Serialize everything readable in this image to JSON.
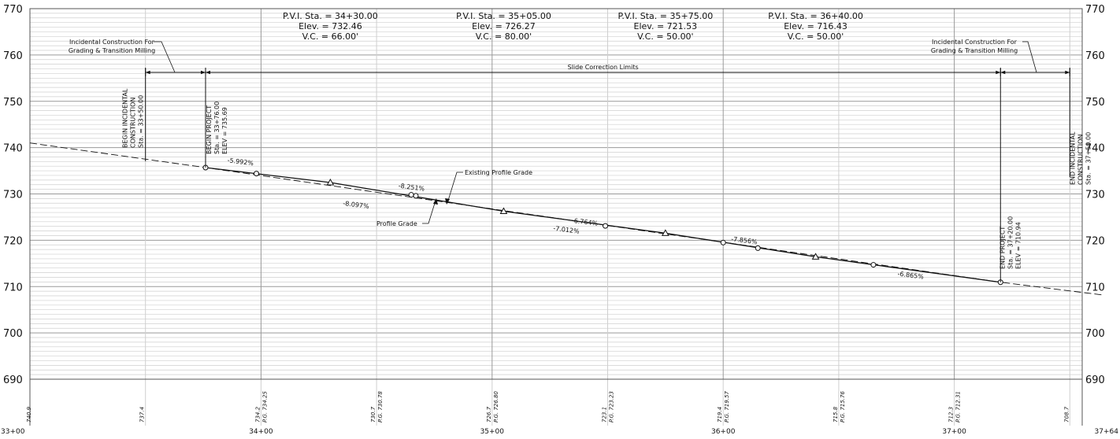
{
  "chart_data": {
    "type": "line",
    "title": "",
    "xlabel": "",
    "ylabel": "",
    "x_unit": "station (ft)",
    "xlim": [
      3300,
      3764
    ],
    "ylim": [
      690,
      770
    ],
    "y_ticks": [
      690,
      700,
      710,
      720,
      730,
      740,
      750,
      760,
      770
    ],
    "x_ticks": [
      {
        "sta": 3300,
        "label": "33+00"
      },
      {
        "sta": 3400,
        "label": "34+00"
      },
      {
        "sta": 3500,
        "label": "35+00"
      },
      {
        "sta": 3600,
        "label": "36+00"
      },
      {
        "sta": 3700,
        "label": "37+00"
      },
      {
        "sta": 3764,
        "label": "37+64"
      }
    ],
    "grid": true,
    "series": [
      {
        "name": "Existing Profile Grade",
        "style": "dashed",
        "x": [
          3300,
          3376,
          3720,
          3764
        ],
        "y": [
          741.0,
          735.69,
          710.94,
          708.2
        ]
      },
      {
        "name": "Profile Grade",
        "style": "solid",
        "x": [
          3376,
          3430,
          3505,
          3575,
          3640,
          3720
        ],
        "y": [
          735.69,
          732.46,
          726.27,
          721.53,
          716.43,
          710.94
        ]
      }
    ],
    "circle_markers": [
      {
        "x": 3376,
        "y": 735.69
      },
      {
        "x": 3398,
        "y": 734.4
      },
      {
        "x": 3465,
        "y": 729.8
      },
      {
        "x": 3467,
        "y": 729.6
      },
      {
        "x": 3549,
        "y": 723.1
      },
      {
        "x": 3600,
        "y": 719.5
      },
      {
        "x": 3615,
        "y": 718.3
      },
      {
        "x": 3665,
        "y": 714.7
      },
      {
        "x": 3720,
        "y": 710.94
      }
    ],
    "triangle_markers": [
      {
        "x": 3430,
        "y": 732.46
      },
      {
        "x": 3505,
        "y": 726.27
      },
      {
        "x": 3575,
        "y": 721.53
      },
      {
        "x": 3640,
        "y": 716.43
      }
    ],
    "pvi_labels": [
      {
        "x": 3430,
        "lines": [
          "P.V.I. Sta. = 34+30.00",
          "Elev. = 732.46",
          "V.C. = 66.00'"
        ]
      },
      {
        "x": 3505,
        "lines": [
          "P.V.I. Sta. = 35+05.00",
          "Elev. = 726.27",
          "V.C. = 80.00'"
        ]
      },
      {
        "x": 3575,
        "lines": [
          "P.V.I. Sta. = 35+75.00",
          "Elev. = 721.53",
          "V.C. = 50.00'"
        ]
      },
      {
        "x": 3640,
        "lines": [
          "P.V.I. Sta. = 36+40.00",
          "Elev. = 716.43",
          "V.C. = 50.00'"
        ]
      }
    ],
    "grade_labels": [
      {
        "x": 3391,
        "y": 736.5,
        "text": "-5.992%"
      },
      {
        "x": 3441,
        "y": 727.2,
        "text": "-8.097%"
      },
      {
        "x": 3465,
        "y": 731.0,
        "text": "-8.251%"
      },
      {
        "x": 3540,
        "y": 723.5,
        "text": "-6.764%"
      },
      {
        "x": 3532,
        "y": 721.8,
        "text": "-7.012%"
      },
      {
        "x": 3609,
        "y": 719.5,
        "text": "-7.856%"
      },
      {
        "x": 3681,
        "y": 712.0,
        "text": "-6.865%"
      }
    ],
    "bottom_elevations": [
      {
        "x": 3301,
        "eg": "740.9"
      },
      {
        "x": 3350,
        "eg": "737.4"
      },
      {
        "x": 3400,
        "eg": "734.2",
        "pg": "P.G. 734.25"
      },
      {
        "x": 3450,
        "eg": "730.7",
        "pg": "P.G. 730.78"
      },
      {
        "x": 3500,
        "eg": "726.7",
        "pg": "P.G. 726.80"
      },
      {
        "x": 3550,
        "eg": "723.1",
        "pg": "P.G. 723.23"
      },
      {
        "x": 3600,
        "eg": "719.4",
        "pg": "P.G. 719.57"
      },
      {
        "x": 3650,
        "eg": "715.8",
        "pg": "P.G. 715.76"
      },
      {
        "x": 3700,
        "eg": "712.3",
        "pg": "P.G. 712.31"
      },
      {
        "x": 3750,
        "eg": "708.7"
      }
    ]
  },
  "annotations": {
    "incidental_left": [
      "Incidental Construction For",
      "Grading & Transition Milling"
    ],
    "incidental_right": [
      "Incidental Construction For",
      "Grading & Transition Milling"
    ],
    "slide_limits": "Slide Correction Limits",
    "existing_grade_label": "Existing Profile Grade",
    "profile_grade_label": "Profile Grade",
    "begin_incidental": [
      "BEGIN INCIDENTAL",
      "CONSTRUCTION",
      "Sta. = 33+50.00"
    ],
    "begin_project": [
      "BEGIN PROJECT",
      "Sta. = 33+76.00",
      "ELEV = 735.69"
    ],
    "end_project": [
      "END PROJECT",
      "Sta. = 37+20.00",
      "ELEV = 710.94"
    ],
    "end_incidental": [
      "END INCIDENTAL",
      "CONSTRUCTION",
      "Sta. = 37+50.00"
    ]
  },
  "colors": {
    "grid_major": "#9a9a9a",
    "grid_minor": "#cfcfcf",
    "line": "#111111"
  }
}
